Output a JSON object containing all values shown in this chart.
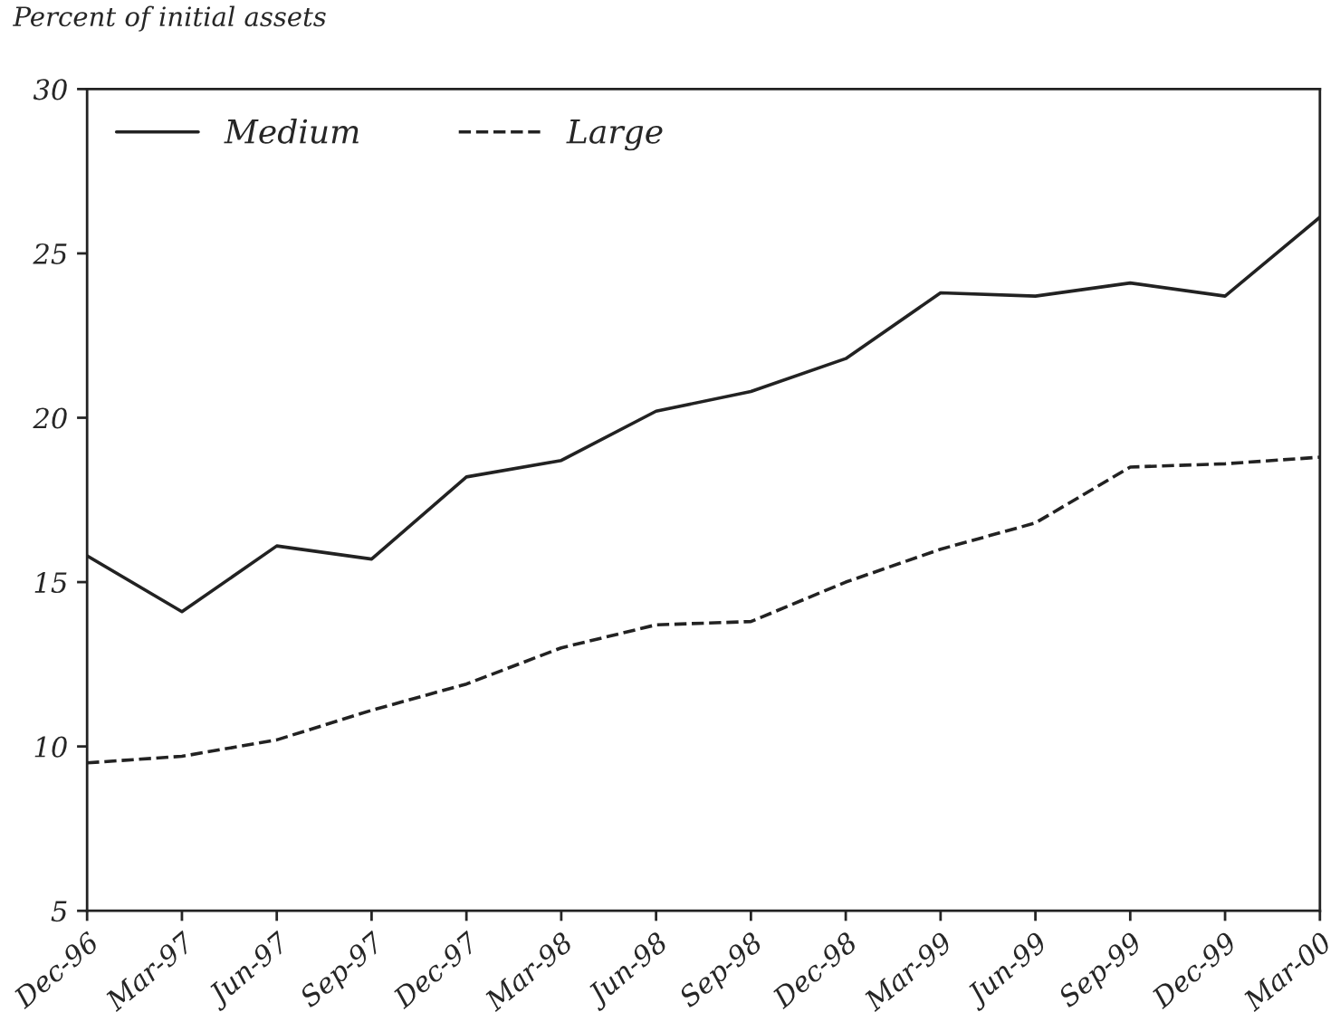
{
  "chart_data": {
    "type": "line",
    "ylabel": "Percent of initial assets",
    "categories": [
      "Dec-96",
      "Mar-97",
      "Jun-97",
      "Sep-97",
      "Dec-97",
      "Mar-98",
      "Jun-98",
      "Sep-98",
      "Dec-98",
      "Mar-99",
      "Jun-99",
      "Sep-99",
      "Dec-99",
      "Mar-00"
    ],
    "series": [
      {
        "name": "Medium",
        "color": "#222222",
        "line_style": "solid",
        "values": [
          15.8,
          14.1,
          16.1,
          15.7,
          18.2,
          18.7,
          20.2,
          20.8,
          21.8,
          23.8,
          23.7,
          24.1,
          23.7,
          26.1
        ]
      },
      {
        "name": "Large",
        "color": "#222222",
        "line_style": "dashed",
        "values": [
          9.5,
          9.7,
          10.2,
          11.1,
          11.9,
          13.0,
          13.7,
          13.8,
          15.0,
          16.0,
          16.8,
          18.5,
          18.6,
          18.8
        ]
      }
    ],
    "ylim": [
      5,
      30
    ],
    "yticks": [
      5,
      10,
      15,
      20,
      25,
      30
    ],
    "grid": false,
    "legend": "top left",
    "marker": "none"
  }
}
